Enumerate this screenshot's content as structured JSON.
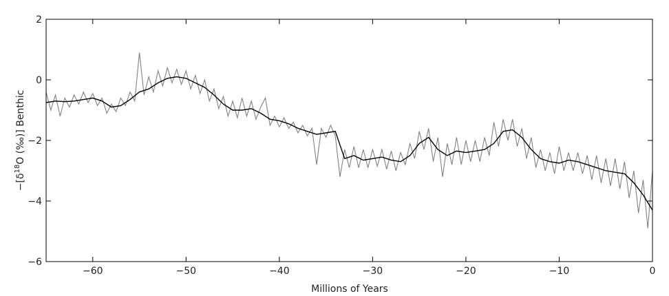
{
  "chart_data": {
    "type": "line",
    "ylabel_parts": [
      "−[δ",
      "18",
      "O (‰)] Benthic"
    ],
    "xlabel": "Millions of Years",
    "xlim": [
      -65,
      0
    ],
    "ylim": [
      -6,
      2
    ],
    "xticks": [
      {
        "value": -60,
        "label": "−60"
      },
      {
        "value": -50,
        "label": "−50"
      },
      {
        "value": -40,
        "label": "−40"
      },
      {
        "value": -30,
        "label": "−30"
      },
      {
        "value": -20,
        "label": "−20"
      },
      {
        "value": -10,
        "label": "−10"
      },
      0
    ],
    "yticks": [
      2,
      0,
      {
        "value": -2,
        "label": "−2"
      },
      {
        "value": -4,
        "label": "−4"
      },
      {
        "value": -6,
        "label": "−6"
      }
    ],
    "series": [
      {
        "color": "#808080",
        "x": [
          -65,
          -64.5,
          -64,
          -63.5,
          -63,
          -62.5,
          -62,
          -61.5,
          -61,
          -60.5,
          -60,
          -59.5,
          -59,
          -58.5,
          -58,
          -57.5,
          -57,
          -56.5,
          -56,
          -55.5,
          -55,
          -54.5,
          -54,
          -53.5,
          -53,
          -52.5,
          -52,
          -51.5,
          -51,
          -50.5,
          -50,
          -49.5,
          -49,
          -48.5,
          -48,
          -47.5,
          -47,
          -46.5,
          -46,
          -45.5,
          -45,
          -44.5,
          -44,
          -43.5,
          -43,
          -42.5,
          -42,
          -41.5,
          -41,
          -40.5,
          -40,
          -39.5,
          -39,
          -38.5,
          -38,
          -37.5,
          -37,
          -36.5,
          -36,
          -35.5,
          -35,
          -34.5,
          -34,
          -33.5,
          -33,
          -32.5,
          -32,
          -31.5,
          -31,
          -30.5,
          -30,
          -29.5,
          -29,
          -28.5,
          -28,
          -27.5,
          -27,
          -26.5,
          -26,
          -25.5,
          -25,
          -24.5,
          -24,
          -23.5,
          -23,
          -22.5,
          -22,
          -21.5,
          -21,
          -20.5,
          -20,
          -19.5,
          -19,
          -18.5,
          -18,
          -17.5,
          -17,
          -16.5,
          -16,
          -15.5,
          -15,
          -14.5,
          -14,
          -13.5,
          -13,
          -12.5,
          -12,
          -11.5,
          -11,
          -10.5,
          -10,
          -9.5,
          -9,
          -8.5,
          -8,
          -7.5,
          -7,
          -6.5,
          -6,
          -5.5,
          -5,
          -4.5,
          -4,
          -3.5,
          -3,
          -2.5,
          -2,
          -1.5,
          -1,
          -0.5,
          0
        ],
        "values": [
          -0.4,
          -1.0,
          -0.5,
          -1.2,
          -0.6,
          -0.9,
          -0.5,
          -0.8,
          -0.4,
          -0.75,
          -0.45,
          -0.85,
          -0.6,
          -1.1,
          -0.8,
          -1.05,
          -0.6,
          -0.85,
          -0.4,
          -0.7,
          0.9,
          -0.5,
          0.1,
          -0.4,
          0.3,
          -0.2,
          0.4,
          -0.1,
          0.35,
          -0.15,
          0.3,
          -0.3,
          0.15,
          -0.45,
          0.0,
          -0.7,
          -0.3,
          -0.95,
          -0.55,
          -1.2,
          -0.7,
          -1.25,
          -0.6,
          -1.2,
          -0.7,
          -1.3,
          -0.9,
          -0.6,
          -1.5,
          -1.2,
          -1.55,
          -1.25,
          -1.6,
          -1.4,
          -1.75,
          -1.5,
          -1.85,
          -1.6,
          -2.8,
          -1.6,
          -1.9,
          -1.5,
          -1.85,
          -3.2,
          -2.3,
          -2.9,
          -2.2,
          -2.9,
          -2.3,
          -2.9,
          -2.3,
          -2.85,
          -2.3,
          -2.95,
          -2.35,
          -3.0,
          -2.4,
          -2.8,
          -2.1,
          -2.6,
          -1.7,
          -2.3,
          -1.6,
          -2.7,
          -1.9,
          -3.2,
          -2.1,
          -2.8,
          -1.9,
          -2.8,
          -2.0,
          -2.7,
          -2.0,
          -2.7,
          -1.9,
          -2.5,
          -1.4,
          -2.2,
          -1.3,
          -2.0,
          -1.3,
          -2.2,
          -1.6,
          -2.6,
          -1.9,
          -2.9,
          -2.3,
          -3.0,
          -2.4,
          -3.1,
          -2.2,
          -3.0,
          -2.4,
          -3.0,
          -2.4,
          -3.1,
          -2.5,
          -3.3,
          -2.5,
          -3.4,
          -2.6,
          -3.5,
          -2.6,
          -3.6,
          -2.7,
          -3.9,
          -3.0,
          -4.4,
          -3.3,
          -4.9,
          -3.0
        ]
      },
      {
        "color": "#000000",
        "x": [
          -65,
          -64,
          -63,
          -62,
          -61,
          -60,
          -59,
          -58,
          -57,
          -56,
          -55,
          -54,
          -53,
          -52,
          -51,
          -50,
          -49,
          -48,
          -47,
          -46,
          -45,
          -44,
          -43,
          -42,
          -41,
          -40,
          -39,
          -38,
          -37,
          -36,
          -35,
          -34,
          -33,
          -32,
          -31,
          -30,
          -29,
          -28,
          -27,
          -26,
          -25,
          -24,
          -23,
          -22,
          -21,
          -20,
          -19,
          -18,
          -17,
          -16,
          -15,
          -14,
          -13,
          -12,
          -11,
          -10,
          -9,
          -8,
          -7,
          -6,
          -5,
          -4,
          -3,
          -2,
          -1,
          0
        ],
        "values": [
          -0.75,
          -0.7,
          -0.72,
          -0.7,
          -0.65,
          -0.6,
          -0.7,
          -0.9,
          -0.85,
          -0.65,
          -0.4,
          -0.3,
          -0.1,
          0.05,
          0.1,
          0.05,
          -0.1,
          -0.25,
          -0.5,
          -0.8,
          -1.0,
          -1.0,
          -0.95,
          -1.1,
          -1.3,
          -1.35,
          -1.45,
          -1.6,
          -1.7,
          -1.8,
          -1.75,
          -1.7,
          -2.6,
          -2.5,
          -2.65,
          -2.6,
          -2.55,
          -2.65,
          -2.7,
          -2.5,
          -2.1,
          -1.9,
          -2.3,
          -2.5,
          -2.35,
          -2.4,
          -2.35,
          -2.3,
          -2.1,
          -1.7,
          -1.65,
          -1.9,
          -2.3,
          -2.6,
          -2.7,
          -2.75,
          -2.65,
          -2.7,
          -2.8,
          -2.9,
          -3.0,
          -3.05,
          -3.1,
          -3.4,
          -3.8,
          -4.3
        ]
      }
    ]
  }
}
